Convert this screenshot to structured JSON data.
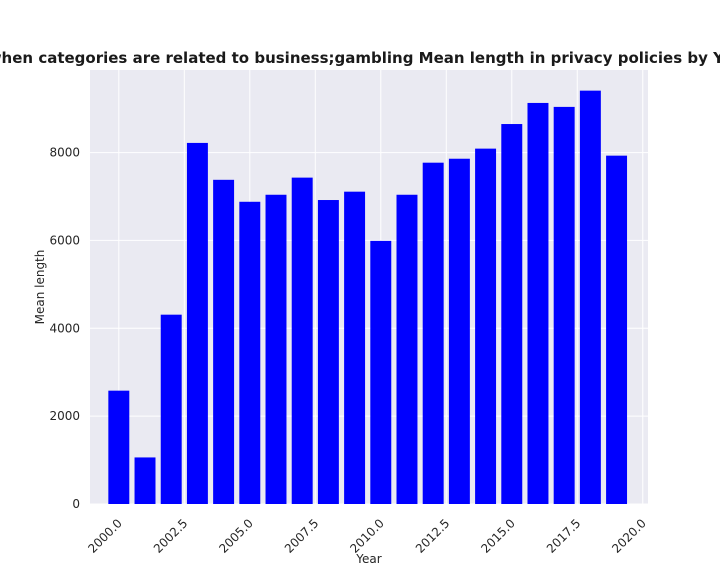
{
  "chart_data": {
    "type": "bar",
    "title": "when categories are related to business;gambling Mean length in privacy policies by Year",
    "xlabel": "Year",
    "ylabel": "Mean length",
    "x": [
      2000,
      2001,
      2002,
      2003,
      2004,
      2005,
      2006,
      2007,
      2008,
      2009,
      2010,
      2011,
      2012,
      2013,
      2014,
      2015,
      2016,
      2017,
      2018,
      2019
    ],
    "values": [
      2580,
      1060,
      4310,
      8220,
      7380,
      6880,
      7040,
      7430,
      6920,
      7110,
      5990,
      7040,
      7770,
      7860,
      8090,
      8650,
      9130,
      9040,
      9410,
      7930
    ],
    "xlim": [
      1998.9,
      2020.2
    ],
    "ylim": [
      0,
      9880
    ],
    "xticks": [
      2000.0,
      2002.5,
      2005.0,
      2007.5,
      2010.0,
      2012.5,
      2015.0,
      2017.5,
      2020.0
    ],
    "xtick_labels": [
      "2000.0",
      "2002.5",
      "2005.0",
      "2007.5",
      "2010.0",
      "2012.5",
      "2015.0",
      "2017.5",
      "2020.0"
    ],
    "yticks": [
      0,
      2000,
      4000,
      6000,
      8000
    ],
    "ytick_labels": [
      "0",
      "2000",
      "4000",
      "6000",
      "8000"
    ],
    "bar_color": "#0000ff",
    "background_color": "#eaeaf2",
    "grid": true,
    "legend": false
  }
}
